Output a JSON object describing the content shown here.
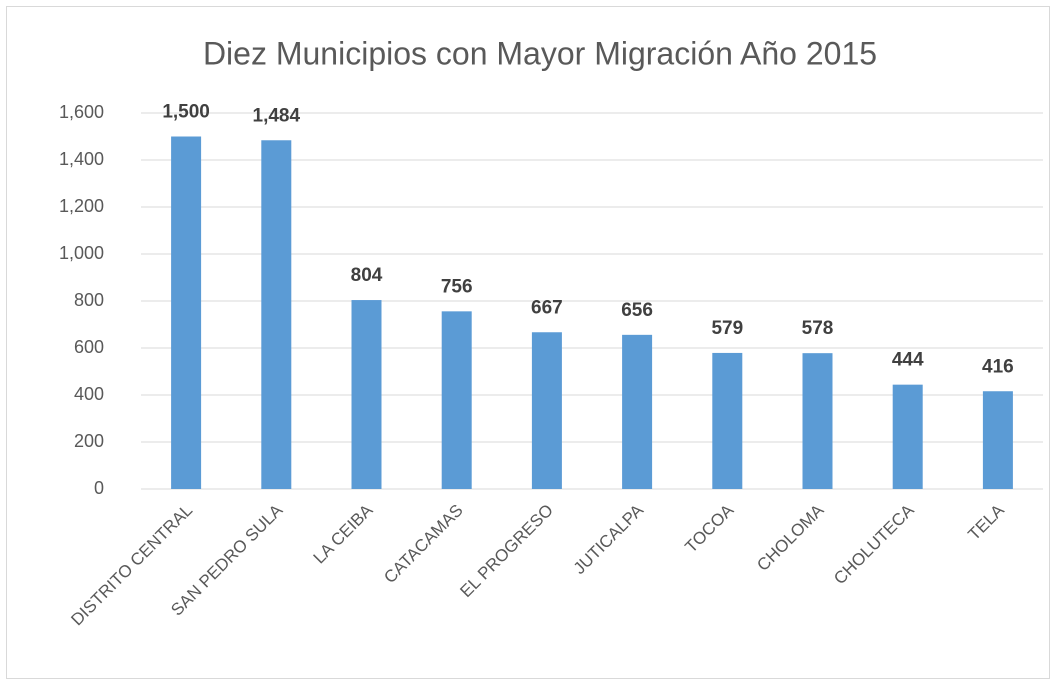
{
  "chart_data": {
    "type": "bar",
    "title": "Diez Municipios con Mayor Migración Año 2015",
    "categories": [
      "DISTRITO CENTRAL",
      "SAN PEDRO SULA",
      "LA CEIBA",
      "CATACAMAS",
      "EL PROGRESO",
      "JUTICALPA",
      "TOCOA",
      "CHOLOMA",
      "CHOLUTECA",
      "TELA"
    ],
    "values": [
      1500,
      1484,
      804,
      756,
      667,
      656,
      579,
      578,
      444,
      416
    ],
    "value_labels": [
      "1,500",
      "1,484",
      "804",
      "756",
      "667",
      "656",
      "579",
      "578",
      "444",
      "416"
    ],
    "color": "#5b9bd5",
    "ylim": [
      0,
      1600
    ],
    "yticks": [
      0,
      200,
      400,
      600,
      800,
      {
        "value": 1000,
        "label": "1,000"
      },
      {
        "value": 1200,
        "label": "1,200"
      },
      {
        "value": 1400,
        "label": "1,400"
      },
      {
        "value": 1600,
        "label": "1,600"
      }
    ],
    "grid": true
  }
}
